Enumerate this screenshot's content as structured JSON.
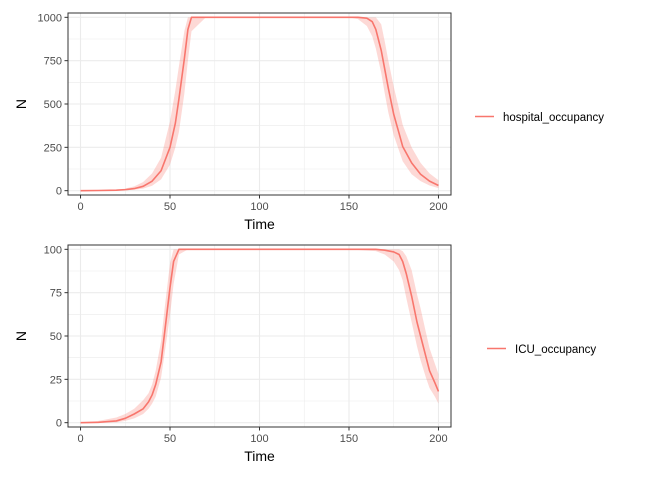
{
  "chart_data": [
    {
      "type": "line",
      "xlabel": "Time",
      "ylabel": "N",
      "xlim": [
        -7,
        207
      ],
      "ylim": [
        -25,
        1025
      ],
      "x_ticks": [
        0,
        50,
        100,
        150,
        200
      ],
      "y_ticks": [
        0,
        250,
        500,
        750,
        1000
      ],
      "x_tick_labels": [
        "0",
        "50",
        "100",
        "150",
        "200"
      ],
      "y_tick_labels": [
        "0",
        "250",
        "500",
        "750",
        "1000"
      ],
      "grid": true,
      "legend_position": "right",
      "colors": {
        "line": "#F8766D",
        "ribbon": "#F8766D"
      },
      "series": [
        {
          "name": "hospital_occupancy",
          "x": [
            0,
            10,
            20,
            25,
            30,
            35,
            40,
            45,
            50,
            53,
            55,
            58,
            60,
            62,
            70,
            100,
            150,
            155,
            160,
            163,
            165,
            168,
            170,
            172,
            175,
            178,
            180,
            185,
            190,
            195,
            200
          ],
          "y": [
            0,
            1,
            3,
            6,
            12,
            25,
            55,
            115,
            250,
            390,
            530,
            760,
            930,
            1000,
            1000,
            1000,
            1000,
            1000,
            995,
            975,
            930,
            810,
            700,
            590,
            440,
            330,
            255,
            160,
            95,
            55,
            30
          ],
          "y_low": [
            0,
            0,
            1,
            3,
            5,
            12,
            28,
            65,
            150,
            250,
            340,
            560,
            750,
            920,
            1000,
            1000,
            1000,
            990,
            950,
            890,
            820,
            680,
            560,
            450,
            320,
            230,
            170,
            95,
            55,
            30,
            15
          ],
          "y_high": [
            0,
            2,
            6,
            12,
            25,
            50,
            100,
            190,
            400,
            580,
            720,
            920,
            1000,
            1000,
            1000,
            1000,
            1000,
            1000,
            1000,
            1000,
            1000,
            960,
            860,
            750,
            600,
            470,
            380,
            250,
            160,
            100,
            60
          ]
        }
      ]
    },
    {
      "type": "line",
      "xlabel": "Time",
      "ylabel": "N",
      "xlim": [
        -7,
        207
      ],
      "ylim": [
        -2.5,
        102.5
      ],
      "x_ticks": [
        0,
        50,
        100,
        150,
        200
      ],
      "y_ticks": [
        0,
        25,
        50,
        75,
        100
      ],
      "x_tick_labels": [
        "0",
        "50",
        "100",
        "150",
        "200"
      ],
      "y_tick_labels": [
        "0",
        "25",
        "50",
        "75",
        "100"
      ],
      "grid": true,
      "legend_position": "right",
      "colors": {
        "line": "#F8766D",
        "ribbon": "#F8766D"
      },
      "series": [
        {
          "name": "ICU_occupancy",
          "x": [
            0,
            10,
            20,
            25,
            30,
            35,
            38,
            40,
            42,
            45,
            47,
            50,
            52,
            55,
            60,
            100,
            150,
            165,
            170,
            175,
            178,
            180,
            182,
            185,
            188,
            190,
            193,
            195,
            198,
            200
          ],
          "y": [
            0,
            0.2,
            1,
            2.5,
            5,
            8,
            12,
            16,
            22,
            35,
            52,
            78,
            93,
            100,
            100,
            100,
            100,
            100,
            99.5,
            98.5,
            97,
            93,
            86,
            73,
            58,
            50,
            38,
            30,
            23,
            18
          ],
          "y_low": [
            0,
            0,
            0.2,
            1,
            2.5,
            5,
            8,
            11,
            15,
            26,
            40,
            62,
            80,
            97,
            100,
            100,
            100,
            99,
            97,
            93,
            88,
            82,
            72,
            58,
            44,
            36,
            26,
            20,
            15,
            11
          ],
          "y_high": [
            0,
            1,
            3,
            5,
            8,
            13,
            17,
            22,
            30,
            47,
            66,
            92,
            100,
            100,
            100,
            100,
            100,
            100,
            100,
            100,
            100,
            99,
            96,
            88,
            74,
            66,
            52,
            43,
            34,
            28
          ]
        }
      ]
    }
  ]
}
